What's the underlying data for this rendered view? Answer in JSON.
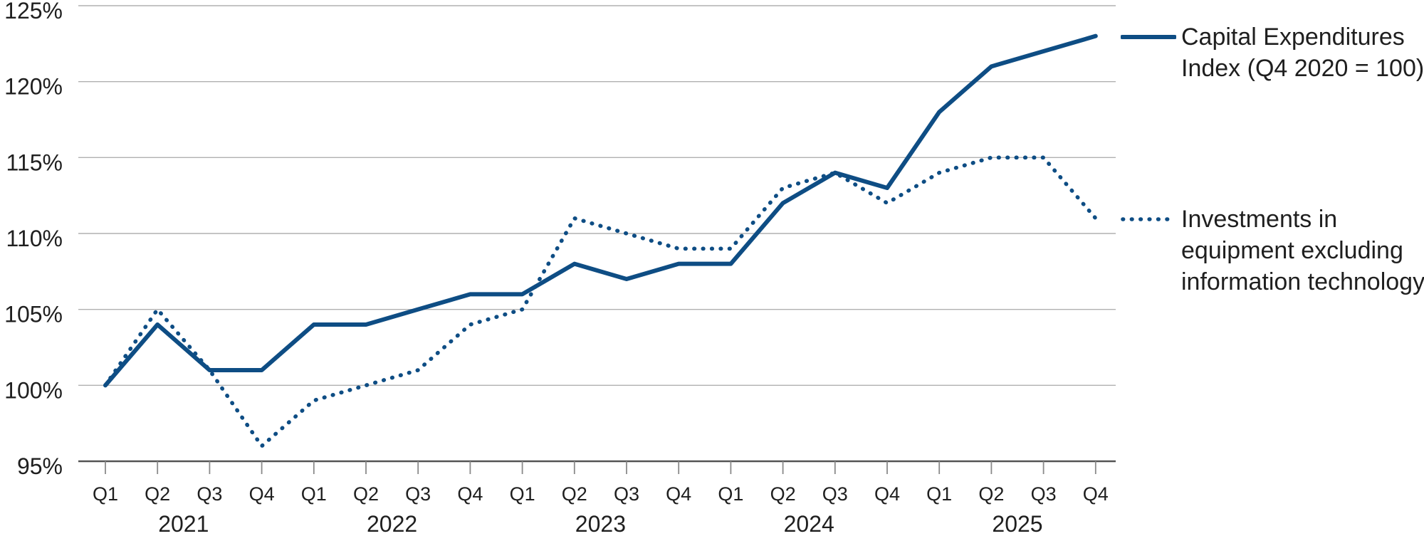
{
  "chart_data": {
    "type": "line",
    "title": "",
    "xlabel": "",
    "ylabel": "",
    "x": [
      "Q1 2021",
      "Q2 2021",
      "Q3 2021",
      "Q4 2021",
      "Q1 2022",
      "Q2 2022",
      "Q3 2022",
      "Q4 2022",
      "Q1 2023",
      "Q2 2023",
      "Q3 2023",
      "Q4 2023",
      "Q1 2024",
      "Q2 2024",
      "Q3 2024",
      "Q4 2024",
      "Q1 2025",
      "Q2 2025",
      "Q3 2025",
      "Q4 2025"
    ],
    "series": [
      {
        "name": "Capital Expenditures Index (Q4 2020 = 100)",
        "style": "solid",
        "values": [
          100,
          104,
          101,
          101,
          104,
          104,
          105,
          106,
          106,
          108,
          107,
          108,
          108,
          112,
          114,
          113,
          118,
          121,
          122,
          123
        ]
      },
      {
        "name": "Investments in equipment excluding information technology",
        "style": "dotted",
        "values": [
          100,
          105,
          101,
          96,
          99,
          100,
          101,
          104,
          105,
          111,
          110,
          109,
          109,
          113,
          114,
          112,
          114,
          115,
          115,
          111
        ]
      }
    ],
    "ylim": [
      95,
      125
    ],
    "ytick_step": 5,
    "ytick_labels": [
      "95%",
      "100%",
      "105%",
      "110%",
      "115%",
      "120%",
      "125%"
    ],
    "x_axis": {
      "quarter_labels": [
        "Q1",
        "Q2",
        "Q3",
        "Q4",
        "Q1",
        "Q2",
        "Q3",
        "Q4",
        "Q1",
        "Q2",
        "Q3",
        "Q4",
        "Q1",
        "Q2",
        "Q3",
        "Q4",
        "Q1",
        "Q2",
        "Q3",
        "Q4"
      ],
      "year_labels": [
        "2021",
        "2022",
        "2023",
        "2024",
        "2025"
      ]
    },
    "grid": true,
    "legend_position": "right",
    "colors": {
      "line_blue": "#0e4d84",
      "grid": "#b0b0b0",
      "axis": "#545454",
      "tick": "#8a8a8a",
      "text": "#1f1f1f",
      "background": "#ffffff"
    }
  },
  "legend": {
    "items": [
      {
        "style": "solid",
        "label_lines": [
          "Capital Expenditures",
          "Index (Q4 2020 = 100)"
        ]
      },
      {
        "style": "dotted",
        "label_lines": [
          "Investments in",
          "equipment excluding",
          "information technology"
        ]
      }
    ]
  }
}
